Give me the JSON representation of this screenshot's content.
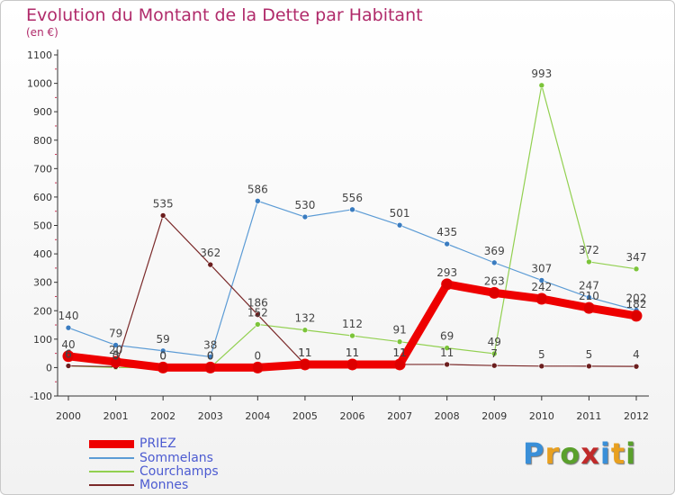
{
  "title": "Evolution du Montant de la Dette par Habitant",
  "subtitle": "(en €)",
  "logo": {
    "text": "Proxiti",
    "letter_colors": [
      "#3a8fd8",
      "#e8a020",
      "#5aa02c",
      "#c02a2a",
      "#3a8fd8",
      "#e8a020",
      "#5aa02c"
    ]
  },
  "chart_data": {
    "type": "line",
    "title": "Evolution du Montant de la Dette par Habitant",
    "ylabel": "(en €)",
    "xlabel": "",
    "ylim": [
      -100,
      1100
    ],
    "yticks": [
      -100,
      0,
      100,
      200,
      300,
      400,
      500,
      600,
      700,
      800,
      900,
      1000,
      1100
    ],
    "grid": false,
    "legend": "bottom-left",
    "x": [
      "2000",
      "2001",
      "2002",
      "2003",
      "2004",
      "2005",
      "2006",
      "2007",
      "2008",
      "2009",
      "2010",
      "2011",
      "2012"
    ],
    "series": [
      {
        "name": "Sommelans",
        "color": "#5b9bd5",
        "marker": "#3a7cc0",
        "width": 1.2,
        "values": [
          140,
          79,
          59,
          38,
          586,
          530,
          556,
          501,
          435,
          369,
          307,
          247,
          202
        ],
        "labels": [
          "140",
          "79",
          "59",
          "38",
          "586",
          "530",
          "556",
          "501",
          "435",
          "369",
          "307",
          "247",
          "202"
        ]
      },
      {
        "name": "Courchamps",
        "color": "#92d050",
        "marker": "#7cc43a",
        "width": 1.2,
        "values": [
          6,
          0,
          0,
          0,
          152,
          132,
          112,
          91,
          69,
          49,
          993,
          372,
          347
        ],
        "labels": [
          "6",
          "0",
          "0",
          "0",
          "152",
          "132",
          "112",
          "91",
          "69",
          "49",
          "993",
          "372",
          "347"
        ]
      },
      {
        "name": "Monnes",
        "color": "#7b2a2a",
        "marker": "#6b1e1e",
        "width": 1.2,
        "values": [
          6,
          3,
          535,
          362,
          186,
          11,
          11,
          11,
          11,
          7,
          5,
          5,
          4
        ],
        "labels": [
          "6",
          "3",
          "535",
          "362",
          "186",
          "11",
          "11",
          "11",
          "11",
          "7",
          "5",
          "5",
          "4"
        ]
      },
      {
        "name": "PRIEZ",
        "color": "#ee0000",
        "marker": "#dd0000",
        "width": 9,
        "values": [
          40,
          20,
          0,
          0,
          0,
          11,
          11,
          11,
          293,
          263,
          242,
          210,
          182
        ],
        "labels": [
          "40",
          "20",
          "0",
          "0",
          "0",
          "11",
          "11",
          "11",
          "293",
          "263",
          "242",
          "210",
          "182"
        ]
      }
    ]
  },
  "legend_items": [
    {
      "name": "PRIEZ",
      "color": "#ee0000",
      "thickness": 9
    },
    {
      "name": "Sommelans",
      "color": "#5b9bd5",
      "thickness": 2
    },
    {
      "name": "Courchamps",
      "color": "#92d050",
      "thickness": 2
    },
    {
      "name": "Monnes",
      "color": "#7b2a2a",
      "thickness": 2
    }
  ]
}
